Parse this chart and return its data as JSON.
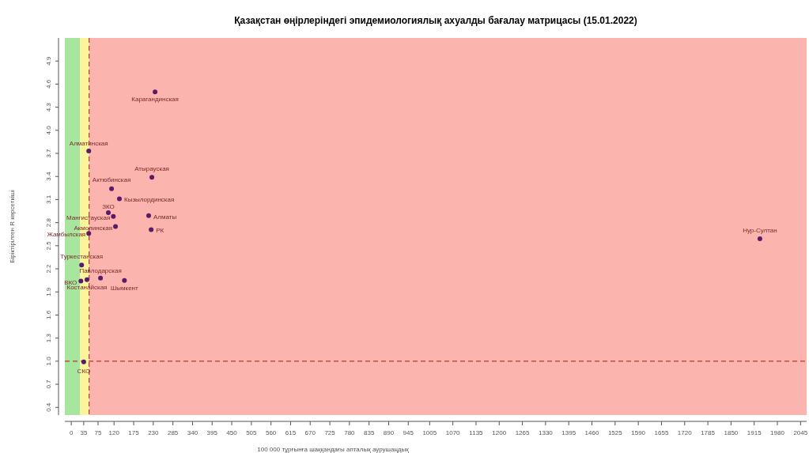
{
  "chart_data": {
    "type": "scatter",
    "title": "Қазақстан өңірлеріндегі эпидемиологиялық ахуалды бағалау матрицасы  (15.01.2022)",
    "xlabel": "100 000 тұрғынға шаққандағы апталық аурушаңдық",
    "ylabel": "Біріктірілген R көрсеткіші",
    "series": [
      {
        "color": "#5a1a6a",
        "x": [
          235,
          49,
          226,
          113,
          135,
          104,
          118,
          217,
          124,
          224,
          49,
          29,
          27,
          44,
          82,
          149,
          35,
          1931
        ],
        "values": [
          4.5,
          3.73,
          3.39,
          3.24,
          3.11,
          2.93,
          2.88,
          2.89,
          2.75,
          2.71,
          2.66,
          2.25,
          2.04,
          2.06,
          2.08,
          2.05,
          0.99,
          2.59
        ]
      }
    ],
    "annotations": [
      {
        "text": "Карагандинская",
        "x": 235,
        "y": 4.5
      },
      {
        "text": "Алматинская",
        "x": 49,
        "y": 3.73
      },
      {
        "text": "Атырауская",
        "x": 226,
        "y": 3.39
      },
      {
        "text": "Актюбинская",
        "x": 113,
        "y": 3.24
      },
      {
        "text": "Кызылординская",
        "x": 135,
        "y": 3.11
      },
      {
        "text": "ЗКО",
        "x": 104,
        "y": 2.93
      },
      {
        "text": "Мангистауская",
        "x": 118,
        "y": 2.88
      },
      {
        "text": "Алматы",
        "x": 217,
        "y": 2.89
      },
      {
        "text": "Акмолинская",
        "x": 124,
        "y": 2.75
      },
      {
        "text": "РК",
        "x": 224,
        "y": 2.71
      },
      {
        "text": "Жамбылская",
        "x": 49,
        "y": 2.66
      },
      {
        "text": "Туркестанская",
        "x": 29,
        "y": 2.25
      },
      {
        "text": "ВКО",
        "x": 27,
        "y": 2.04
      },
      {
        "text": "Костанайская",
        "x": 44,
        "y": 2.06
      },
      {
        "text": "Павлодарская",
        "x": 82,
        "y": 2.08
      },
      {
        "text": "Шымкент",
        "x": 149,
        "y": 2.05
      },
      {
        "text": "СКО",
        "x": 35,
        "y": 0.99
      },
      {
        "text": "Нур-Султан",
        "x": 1931,
        "y": 2.59
      }
    ],
    "bands": [
      {
        "axis": "x",
        "from": -18,
        "to": 25,
        "color": "#a8e6a0"
      },
      {
        "axis": "x",
        "from": 25,
        "to": 50,
        "color": "#fcf49a"
      },
      {
        "axis": "x",
        "from": 50,
        "to": 2062,
        "color": "#fcb4ae"
      }
    ],
    "ref_lines": [
      {
        "axis": "x",
        "value": 50,
        "color": "#b03a2e",
        "line_style": "dashed"
      },
      {
        "axis": "y",
        "value": 1.0,
        "color": "#b03a2e",
        "line_style": "dashed"
      }
    ],
    "xlim": [
      -18,
      2062
    ],
    "xticks": [
      0,
      35,
      75,
      120,
      175,
      230,
      285,
      340,
      395,
      450,
      505,
      560,
      615,
      670,
      725,
      780,
      835,
      890,
      945,
      1005,
      1070,
      1135,
      1200,
      1265,
      1330,
      1395,
      1460,
      1525,
      1590,
      1655,
      1720,
      1785,
      1850,
      1915,
      1980,
      2045
    ],
    "ylim": [
      0.3,
      5.2
    ],
    "yticks": [
      0.4,
      0.7,
      {
        "value": 1.0,
        "label": "1.0"
      },
      1.3,
      1.6,
      1.9,
      2.2,
      2.5,
      2.8,
      3.1,
      3.4,
      3.7,
      {
        "value": 4.0,
        "label": "4.0"
      },
      4.3,
      4.6,
      4.9
    ],
    "marker": "circle",
    "grid": false
  }
}
